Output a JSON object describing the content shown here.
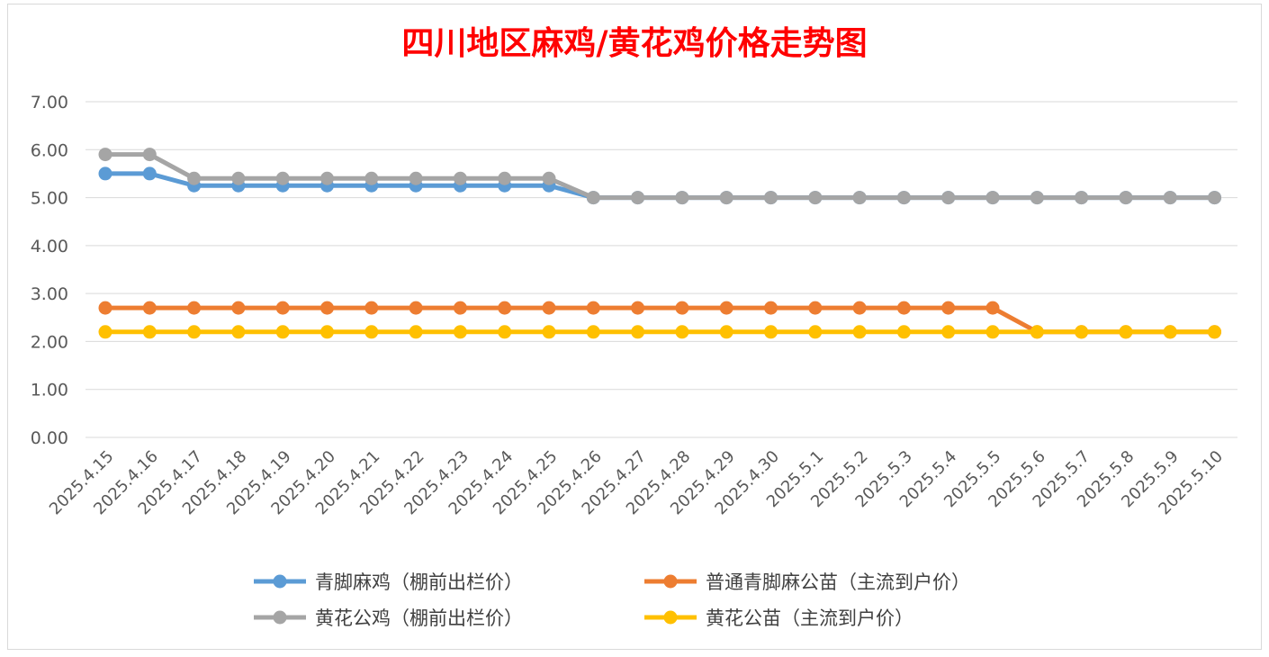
{
  "chart_data": {
    "type": "line",
    "title": "四川地区麻鸡/黄花鸡价格走势图",
    "xlabel": "",
    "ylabel": "",
    "ylim": [
      0,
      7
    ],
    "yticks": [
      "0.00",
      "1.00",
      "2.00",
      "3.00",
      "4.00",
      "5.00",
      "6.00",
      "7.00"
    ],
    "grid": true,
    "legend_position": "bottom",
    "categories": [
      "2025.4.15",
      "2025.4.16",
      "2025.4.17",
      "2025.4.18",
      "2025.4.19",
      "2025.4.20",
      "2025.4.21",
      "2025.4.22",
      "2025.4.23",
      "2025.4.24",
      "2025.4.25",
      "2025.4.26",
      "2025.4.27",
      "2025.4.28",
      "2025.4.29",
      "2025.4.30",
      "2025.5.1",
      "2025.5.2",
      "2025.5.3",
      "2025.5.4",
      "2025.5.5",
      "2025.5.6",
      "2025.5.7",
      "2025.5.8",
      "2025.5.9",
      "2025.5.10"
    ],
    "series": [
      {
        "name": "青脚麻鸡（棚前出栏价）",
        "color": "#5b9bd5",
        "values": [
          5.5,
          5.5,
          5.25,
          5.25,
          5.25,
          5.25,
          5.25,
          5.25,
          5.25,
          5.25,
          5.25,
          5.0,
          5.0,
          5.0,
          5.0,
          5.0,
          5.0,
          5.0,
          5.0,
          5.0,
          5.0,
          5.0,
          5.0,
          5.0,
          5.0,
          5.0
        ]
      },
      {
        "name": "普通青脚麻公苗（主流到户价）",
        "color": "#ed7d31",
        "values": [
          2.7,
          2.7,
          2.7,
          2.7,
          2.7,
          2.7,
          2.7,
          2.7,
          2.7,
          2.7,
          2.7,
          2.7,
          2.7,
          2.7,
          2.7,
          2.7,
          2.7,
          2.7,
          2.7,
          2.7,
          2.7,
          2.2,
          2.2,
          2.2,
          2.2,
          2.2
        ]
      },
      {
        "name": "黄花公鸡（棚前出栏价）",
        "color": "#a5a5a5",
        "values": [
          5.9,
          5.9,
          5.4,
          5.4,
          5.4,
          5.4,
          5.4,
          5.4,
          5.4,
          5.4,
          5.4,
          5.0,
          5.0,
          5.0,
          5.0,
          5.0,
          5.0,
          5.0,
          5.0,
          5.0,
          5.0,
          5.0,
          5.0,
          5.0,
          5.0,
          5.0
        ]
      },
      {
        "name": "黄花公苗（主流到户价）",
        "color": "#ffc000",
        "values": [
          2.2,
          2.2,
          2.2,
          2.2,
          2.2,
          2.2,
          2.2,
          2.2,
          2.2,
          2.2,
          2.2,
          2.2,
          2.2,
          2.2,
          2.2,
          2.2,
          2.2,
          2.2,
          2.2,
          2.2,
          2.2,
          2.2,
          2.2,
          2.2,
          2.2,
          2.2
        ]
      }
    ]
  }
}
